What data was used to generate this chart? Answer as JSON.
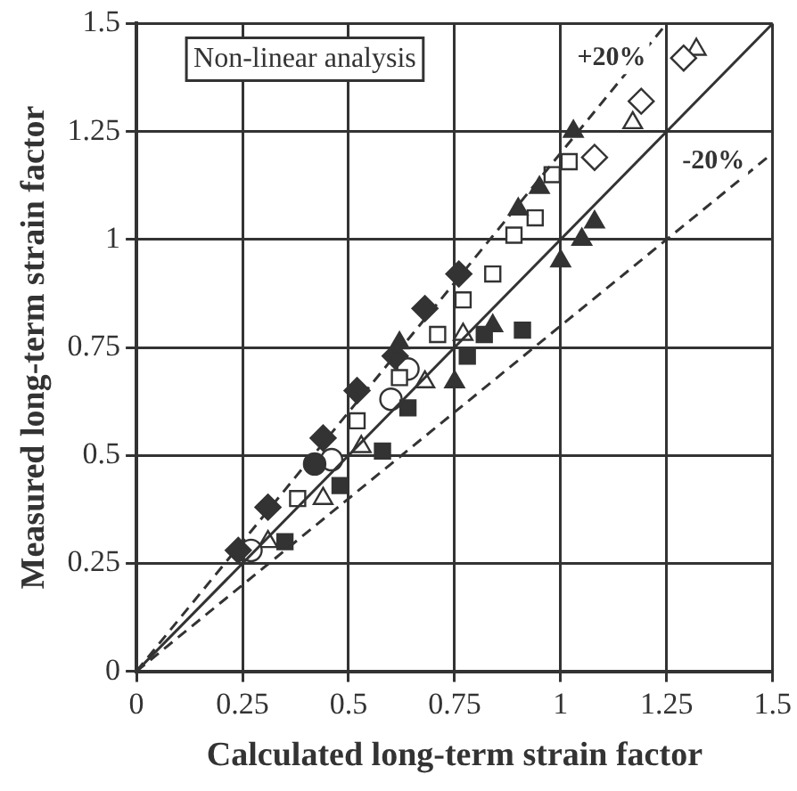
{
  "chart_data": {
    "type": "scatter",
    "xlabel": "Calculated long-term strain factor",
    "ylabel": "Measured long-term strain factor",
    "xlim": [
      0,
      1.5
    ],
    "ylim": [
      0,
      1.5
    ],
    "xticks": [
      0,
      0.25,
      0.5,
      0.75,
      1,
      1.25,
      1.5
    ],
    "yticks": [
      0,
      0.25,
      0.5,
      0.75,
      1,
      1.25,
      1.5
    ],
    "grid": true,
    "legend": false,
    "annotations": [
      "Non-linear analysis",
      {
        "text": "+20%",
        "x": 1.12,
        "y": 1.42
      },
      {
        "text": "-20%",
        "x": 1.36,
        "y": 1.18
      }
    ],
    "series": [
      {
        "type": "line",
        "color": "#333333",
        "marker": "none",
        "line_style": "solid",
        "x": [
          0,
          1.5
        ],
        "values": [
          0,
          1.5
        ]
      },
      {
        "type": "line",
        "color": "#333333",
        "marker": "none",
        "line_style": "dashed",
        "x": [
          0,
          1.25
        ],
        "values": [
          0,
          1.5
        ]
      },
      {
        "type": "line",
        "color": "#333333",
        "marker": "none",
        "line_style": "dashed",
        "x": [
          0,
          1.5
        ],
        "values": [
          0,
          1.2
        ]
      },
      {
        "color": "#333333",
        "marker": "diamond",
        "x": [
          0.76,
          0.68,
          0.61,
          0.52,
          0.44,
          0.31,
          0.24
        ],
        "values": [
          0.92,
          0.84,
          0.73,
          0.65,
          0.54,
          0.38,
          0.28
        ]
      },
      {
        "color": "#333333",
        "marker": "square",
        "x": [
          0.91,
          0.82,
          0.78,
          0.64,
          0.58,
          0.48,
          0.35
        ],
        "values": [
          0.79,
          0.78,
          0.73,
          0.61,
          0.51,
          0.43,
          0.3
        ]
      },
      {
        "color": "#333333",
        "marker": "triangle",
        "x": [
          1.03,
          0.95,
          0.9,
          0.62
        ],
        "values": [
          1.25,
          1.12,
          1.07,
          0.76
        ]
      },
      {
        "color": "#333333",
        "marker": "triangle",
        "x": [
          1.08,
          1.05,
          1.0,
          0.84,
          0.75
        ],
        "values": [
          1.04,
          1.0,
          0.95,
          0.8,
          0.67
        ]
      },
      {
        "color": "#333333",
        "marker": "circle",
        "x": [
          0.42
        ],
        "values": [
          0.48
        ]
      },
      {
        "color": "#ffffff",
        "marker": "square",
        "x": [
          1.02,
          0.98,
          0.94,
          0.89,
          0.84,
          0.77,
          0.71,
          0.62,
          0.52,
          0.38
        ],
        "values": [
          1.18,
          1.15,
          1.05,
          1.01,
          0.92,
          0.86,
          0.78,
          0.68,
          0.58,
          0.4
        ]
      },
      {
        "color": "#ffffff",
        "marker": "circle",
        "x": [
          0.27,
          0.46,
          0.6,
          0.64
        ],
        "values": [
          0.28,
          0.49,
          0.63,
          0.7
        ]
      },
      {
        "color": "#ffffff",
        "marker": "triangle",
        "x": [
          0.31,
          0.44,
          0.53,
          0.68,
          0.77
        ],
        "values": [
          0.3,
          0.4,
          0.52,
          0.67,
          0.78
        ]
      },
      {
        "color": "#ffffff",
        "marker": "diamond",
        "x": [
          1.29,
          1.19,
          1.08
        ],
        "values": [
          1.42,
          1.32,
          1.19
        ]
      },
      {
        "color": "#ffffff",
        "marker": "triangle",
        "x": [
          1.32,
          1.17
        ],
        "values": [
          1.44,
          1.27
        ]
      }
    ]
  }
}
